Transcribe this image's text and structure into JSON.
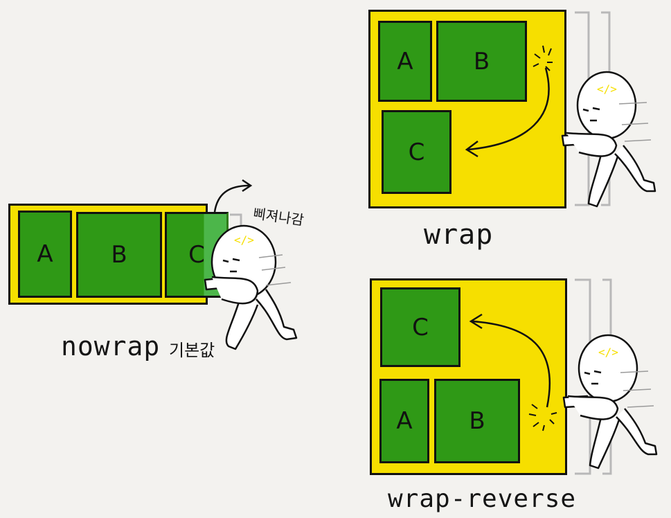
{
  "panels": {
    "nowrap": {
      "caption": "nowrap",
      "caption_note": "기본값",
      "overflow_note": "삐져나감",
      "items": [
        "A",
        "B",
        "C"
      ]
    },
    "wrap": {
      "caption": "wrap",
      "items": [
        "A",
        "B",
        "C"
      ]
    },
    "wrap_reverse": {
      "caption": "wrap-reverse",
      "items": [
        "C",
        "A",
        "B"
      ]
    }
  },
  "character": {
    "badge": "</>"
  },
  "colors": {
    "background": "#f3f2ef",
    "container": "#f6df00",
    "item": "#2f9916",
    "outline": "#111111",
    "bracket": "#b8b8b8"
  }
}
